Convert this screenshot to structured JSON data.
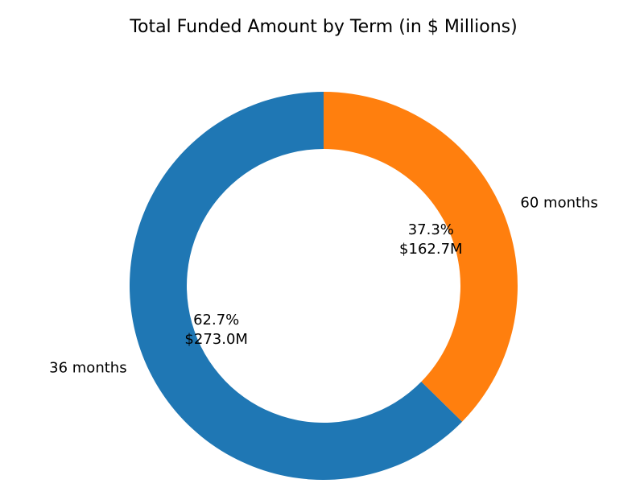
{
  "chart_data": {
    "type": "pie",
    "title": "Total Funded Amount by Term (in $ Millions)",
    "donut": true,
    "slices": [
      {
        "label": "36 months",
        "percent": "62.7%",
        "value_label": "$273.0M",
        "value": 273.0,
        "color": "#1f77b4"
      },
      {
        "label": "60 months",
        "percent": "37.3%",
        "value_label": "$162.7M",
        "value": 162.7,
        "color": "#ff7f0e"
      }
    ],
    "start_angle": "top",
    "direction": "counterclockwise"
  }
}
